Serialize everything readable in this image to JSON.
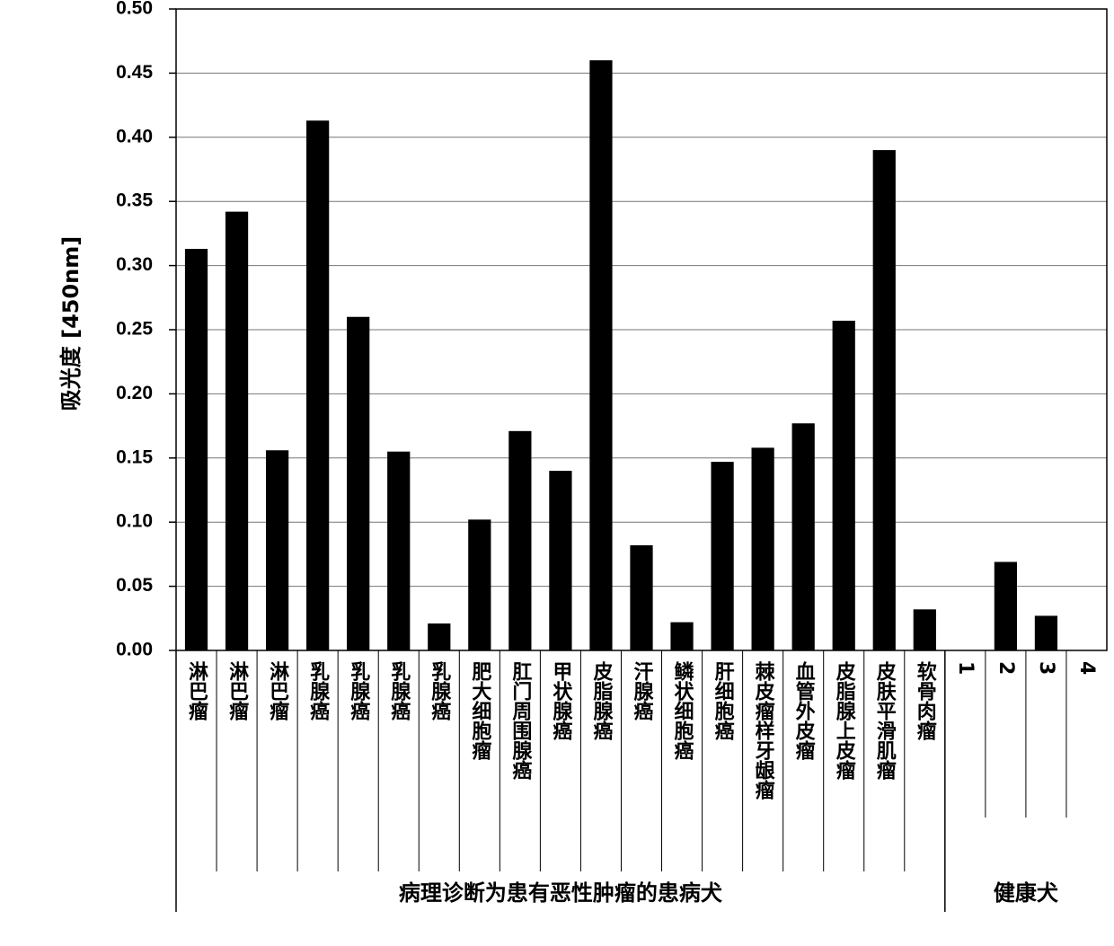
{
  "chart_data": {
    "type": "bar",
    "y_label": "吸光度 [450nm]",
    "categories": [
      "淋巴瘤",
      "淋巴瘤",
      "淋巴瘤",
      "乳腺癌",
      "乳腺癌",
      "乳腺癌",
      "乳腺癌",
      "肥大细胞瘤",
      "肛门周围腺癌",
      "甲状腺癌",
      "皮脂腺癌",
      "汗腺癌",
      "鳞状细胞癌",
      "肝细胞癌",
      "棘皮瘤样牙龈瘤",
      "血管外皮瘤",
      "皮脂腺上皮瘤",
      "皮肤平滑肌瘤",
      "软骨肉瘤",
      "1",
      "2",
      "3",
      "4"
    ],
    "values": [
      0.313,
      0.342,
      0.156,
      0.413,
      0.26,
      0.155,
      0.021,
      0.102,
      0.171,
      0.14,
      0.46,
      0.082,
      0.022,
      0.147,
      0.158,
      0.177,
      0.257,
      0.39,
      0.032,
      0,
      0.069,
      0.027,
      0
    ],
    "groups": [
      {
        "name": "病理诊断为患有恶性肿瘤的患病犬",
        "count": 19
      },
      {
        "name": "健康犬",
        "count": 4
      }
    ],
    "color": "#000000",
    "ylim": [
      0,
      0.5
    ],
    "yticks": [
      {
        "value": 0,
        "label": "0.00"
      },
      0.05,
      {
        "value": 0.1,
        "label": "0.10"
      },
      0.15,
      {
        "value": 0.2,
        "label": "0.20"
      },
      0.25,
      {
        "value": 0.3,
        "label": "0.30"
      },
      0.35,
      {
        "value": 0.4,
        "label": "0.40"
      },
      0.45,
      {
        "value": 0.5,
        "label": "0.50"
      }
    ],
    "grid": true
  }
}
